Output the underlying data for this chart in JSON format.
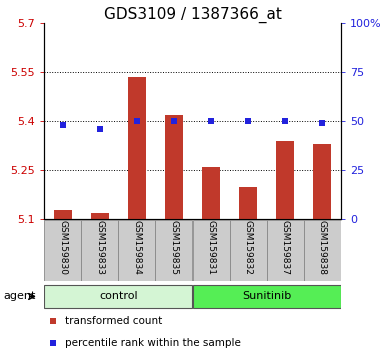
{
  "title": "GDS3109 / 1387366_at",
  "samples": [
    "GSM159830",
    "GSM159833",
    "GSM159834",
    "GSM159835",
    "GSM159831",
    "GSM159832",
    "GSM159837",
    "GSM159838"
  ],
  "red_values": [
    5.13,
    5.12,
    5.535,
    5.42,
    5.26,
    5.2,
    5.34,
    5.33
  ],
  "blue_values": [
    48,
    46,
    50,
    50,
    50,
    50,
    50,
    49
  ],
  "ylim_left": [
    5.1,
    5.7
  ],
  "ylim_right": [
    0,
    100
  ],
  "yticks_left": [
    5.1,
    5.25,
    5.4,
    5.55,
    5.7
  ],
  "ytick_labels_left": [
    "5.1",
    "5.25",
    "5.4",
    "5.55",
    "5.7"
  ],
  "yticks_right": [
    0,
    25,
    50,
    75,
    100
  ],
  "ytick_labels_right": [
    "0",
    "25",
    "50",
    "75",
    "100%"
  ],
  "hlines": [
    5.25,
    5.4,
    5.55
  ],
  "bar_bottom": 5.1,
  "bar_color": "#C0392B",
  "blue_color": "#2222dd",
  "groups": [
    {
      "label": "control",
      "start": 0,
      "end": 3,
      "color": "#d4f5d4"
    },
    {
      "label": "Sunitinib",
      "start": 4,
      "end": 7,
      "color": "#55ee55"
    }
  ],
  "agent_label": "agent",
  "legend_items": [
    {
      "color": "#C0392B",
      "label": "transformed count"
    },
    {
      "color": "#2222dd",
      "label": "percentile rank within the sample"
    }
  ],
  "left_color": "#cc0000",
  "right_color": "#2222dd",
  "title_fontsize": 11,
  "tick_fontsize": 8,
  "bar_width": 0.5,
  "sample_label_fontsize": 6.5,
  "group_fontsize": 8,
  "legend_fontsize": 7.5
}
